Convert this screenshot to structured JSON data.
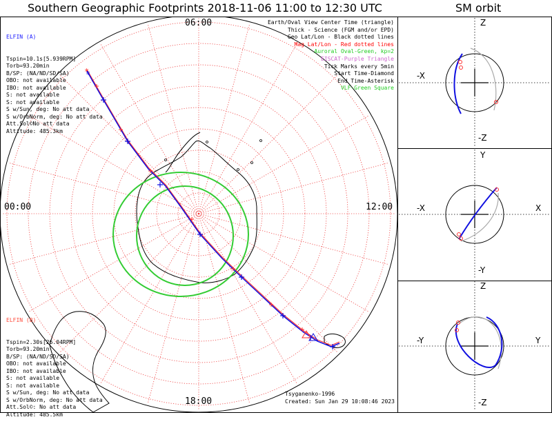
{
  "header": {
    "main_title": "Southern Geographic Footprints 2018-11-06 11:00 to 12:30 UTC",
    "orbit_title": "SM orbit"
  },
  "map": {
    "hour_labels": {
      "top": "06:00",
      "left": "00:00",
      "right": "12:00",
      "bottom": "18:00"
    },
    "colors": {
      "ring_grid": "#ee3b3b",
      "spoke_grid": "#ee3b3b",
      "track_a": "#1010e0",
      "track_b": "#ff3030",
      "auroral_oval": "#33cc33",
      "coast": "#000000"
    }
  },
  "sat_a": {
    "name": "ELFIN (A)",
    "lines": [
      "Tspin=10.1s[5.939RPM]",
      "Torb=93.20min",
      "B/SP: (NA/ND/SD/SA)",
      "OBO: not available",
      "IBO: not available",
      "S: not available",
      "S: not available",
      "S w/Sun, deg: No att data",
      "S w/OrbNorm, deg: No att data",
      "Att.Sol©No att data",
      "Altitude: 485.3km"
    ]
  },
  "sat_b": {
    "name": "ELFIN (B)",
    "lines": [
      "Tspin=2.30s[26.04RPM]",
      "Torb=93.20min",
      "B/SP: (NA/ND/SD/SA)",
      "OBO: not available",
      "IBO: not available",
      "S: not available",
      "S: not available",
      "S w/Sun, deg: No att data",
      "S w/OrbNorm, deg: No att data",
      "Att.Sol©: No att data",
      "Altitude: 485.5km"
    ]
  },
  "legend": [
    {
      "text": "Earth/Oval View Center Time (triangle)",
      "color": "#000000"
    },
    {
      "text": "Thick - Science (FGM and/or EPD)",
      "color": "#000000"
    },
    {
      "text": "Geo Lat/Lon - Black dotted lines",
      "color": "#000000"
    },
    {
      "text": "Mag Lat/Lon - Red dotted lines",
      "color": "#ff0000"
    },
    {
      "text": "Auroral Oval-Green, kp=2",
      "color": "#22cc22"
    },
    {
      "text": "EISCAT-Purple Triangle",
      "color": "#cc66cc"
    },
    {
      "text": "Tick Marks every 5min",
      "color": "#000000"
    },
    {
      "text": "Start Time-Diamond",
      "color": "#000000"
    },
    {
      "text": "End Time-Asterisk",
      "color": "#000000"
    },
    {
      "text": "VLF-Green Square",
      "color": "#22cc22"
    }
  ],
  "footer": {
    "credit": "Tsyganenko-1996",
    "created": "Created: Sun Jan 29 10:08:46 2023"
  },
  "orbit_panels": [
    {
      "top": "Z",
      "bottom": "-Z",
      "left": "-X",
      "right": ""
    },
    {
      "top": "Y",
      "bottom": "-Y",
      "left": "-X",
      "right": "X"
    },
    {
      "top": "Z",
      "bottom": "-Z",
      "left": "-Y",
      "right": "Y"
    }
  ]
}
